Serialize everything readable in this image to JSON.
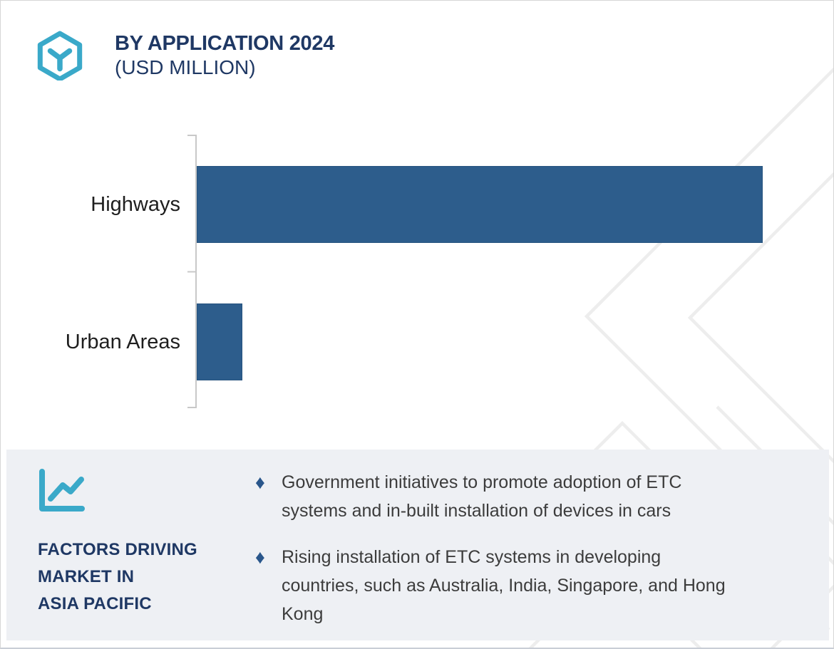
{
  "header": {
    "title": "BY APPLICATION 2024",
    "subtitle": "(USD MILLION)"
  },
  "chart_data": {
    "type": "bar",
    "orientation": "horizontal",
    "title": "BY APPLICATION 2024",
    "subtitle": "(USD MILLION)",
    "unit": "USD Million",
    "categories": [
      "Highways",
      "Urban Areas"
    ],
    "values": [
      100,
      8
    ],
    "values_note": "bars carry no numeric data labels; values estimated relative to Highways = 100",
    "xlim": [
      0,
      100
    ],
    "grid": false,
    "legend": false,
    "axis_tick_labels_shown": false
  },
  "factors": {
    "heading": "FACTORS DRIVING\nMARKET IN\nASIA PACIFIC",
    "bullets": [
      "Government initiatives to promote adoption of ETC\nsystems and in-built installation of devices in cars",
      "Rising installation of ETC systems in developing\ncountries, such as Australia, India, Singapore, and Hong\nKong"
    ]
  },
  "icons": {
    "brand_logo": "hexagon-y-logo-icon",
    "factors_icon": "trend-line-chart-icon",
    "bullet_glyph": "♦"
  },
  "colors": {
    "navy": "#1f3864",
    "teal": "#3aa9c9",
    "panel_bg": "#eef0f4",
    "text_dark": "#3c3c3c",
    "label_dark": "#1e1e1e",
    "bullet_blue": "#29568b",
    "bar_color": "#2d5d8c",
    "bar_border": "#27547f",
    "axis_color": "#c8c8c8",
    "watermark": "#ededed",
    "frame_border": "#d6d6d6"
  }
}
